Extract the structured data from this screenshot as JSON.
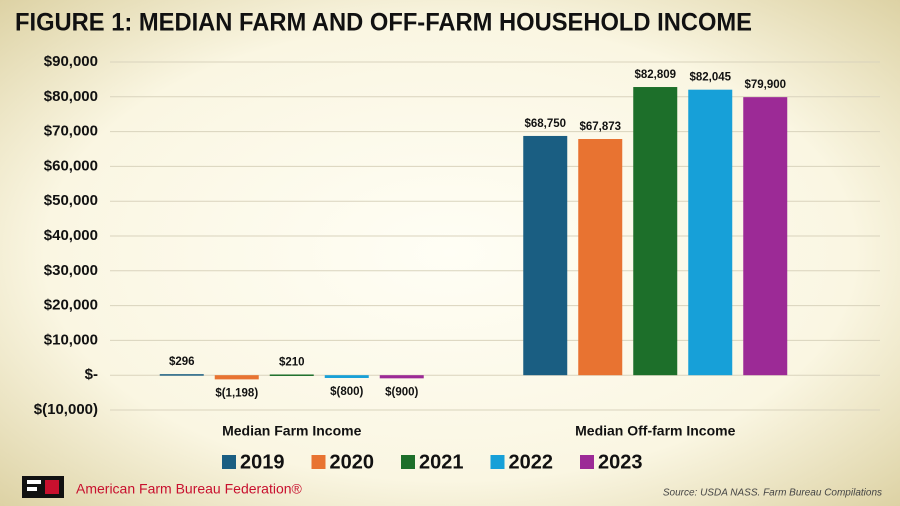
{
  "chart_data": {
    "type": "bar",
    "title": "FIGURE 1: MEDIAN FARM AND OFF-FARM HOUSEHOLD INCOME",
    "categories": [
      "Median Farm Income",
      "Median Off-farm Income"
    ],
    "series": [
      {
        "name": "2019",
        "color": "#1a5e82",
        "values": [
          296,
          68750
        ],
        "value_labels": [
          "$296",
          "$68,750"
        ]
      },
      {
        "name": "2020",
        "color": "#e87331",
        "values": [
          -1198,
          67873
        ],
        "value_labels": [
          "$(1,198)",
          "$67,873"
        ]
      },
      {
        "name": "2021",
        "color": "#1d6f2a",
        "values": [
          210,
          82809
        ],
        "value_labels": [
          "$210",
          "$82,809"
        ]
      },
      {
        "name": "2022",
        "color": "#17a0d8",
        "values": [
          -800,
          82045
        ],
        "value_labels": [
          "$(800)",
          "$82,045"
        ]
      },
      {
        "name": "2023",
        "color": "#9c2a96",
        "values": [
          -900,
          79900
        ],
        "value_labels": [
          "$(900)",
          "$79,900"
        ]
      }
    ],
    "ylim": [
      -10000,
      90000
    ],
    "yticks": [
      {
        "value": -10000,
        "label": "$(10,000)"
      },
      {
        "value": 0,
        "label": "$-"
      },
      {
        "value": 10000,
        "label": "$10,000"
      },
      {
        "value": 20000,
        "label": "$20,000"
      },
      {
        "value": 30000,
        "label": "$30,000"
      },
      {
        "value": 40000,
        "label": "$40,000"
      },
      {
        "value": 50000,
        "label": "$50,000"
      },
      {
        "value": 60000,
        "label": "$60,000"
      },
      {
        "value": 70000,
        "label": "$70,000"
      },
      {
        "value": 80000,
        "label": "$80,000"
      },
      {
        "value": 90000,
        "label": "$90,000"
      }
    ],
    "grid": true,
    "legend": "bottom"
  },
  "footer": {
    "organization": "American Farm Bureau Federation®",
    "source": "Source: USDA NASS. Farm Bureau Compilations"
  }
}
